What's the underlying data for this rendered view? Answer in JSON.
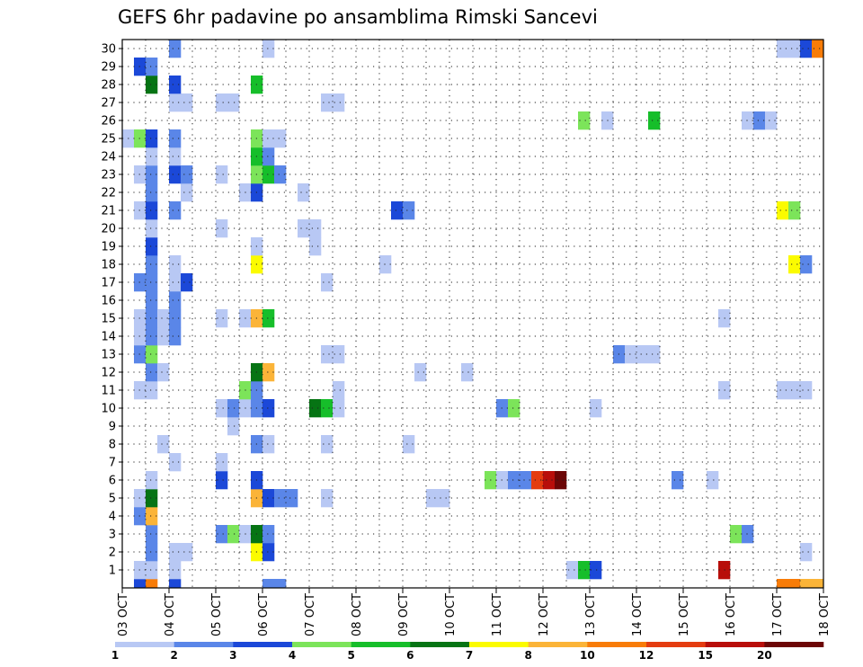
{
  "chart_data": {
    "type": "heatmap",
    "title": "GEFS 6hr padavine po ansamblima Rimski Sancevi",
    "xlabel": "",
    "ylabel": "",
    "x_tick_labels": [
      "03 OCT",
      "04 OCT",
      "05 OCT",
      "06 OCT",
      "07 OCT",
      "08 OCT",
      "09 OCT",
      "10 OCT",
      "11 OCT",
      "12 OCT",
      "13 OCT",
      "14 OCT",
      "15 OCT",
      "16 OCT",
      "17 OCT",
      "18 OCT"
    ],
    "x_range_steps": [
      0,
      60
    ],
    "y_range": [
      0,
      30
    ],
    "y_tick_labels": [
      "1",
      "2",
      "3",
      "4",
      "5",
      "6",
      "7",
      "8",
      "9",
      "10",
      "11",
      "12",
      "13",
      "14",
      "15",
      "16",
      "17",
      "18",
      "19",
      "20",
      "21",
      "22",
      "23",
      "24",
      "25",
      "26",
      "27",
      "28",
      "29",
      "30"
    ],
    "grid": true,
    "grid_style": "dotted",
    "colorbar": {
      "levels": [
        1,
        2,
        3,
        4,
        5,
        6,
        7,
        8,
        10,
        12,
        15,
        20
      ],
      "labels": [
        "1",
        "2",
        "3",
        "4",
        "5",
        "6",
        "7",
        "8",
        "10",
        "12",
        "15",
        "20"
      ],
      "colors": [
        "#b8c8f4",
        "#5a86e8",
        "#1b48d8",
        "#7ce45a",
        "#16be2a",
        "#067414",
        "#fbfb00",
        "#fbb438",
        "#f87c08",
        "#e43c10",
        "#b80e0a",
        "#6c0606"
      ]
    },
    "cells_note": "each cell = [member, start_step(6h), end_step, color_class]; class 1 = 1-2 mm ... class 12 = >=20 mm",
    "cells": [
      [
        0,
        1,
        2,
        3
      ],
      [
        0,
        2,
        3,
        9
      ],
      [
        0,
        4,
        5,
        3
      ],
      [
        0,
        12,
        14,
        2
      ],
      [
        0,
        56,
        58,
        9
      ],
      [
        0,
        58,
        60,
        8
      ],
      [
        1,
        1,
        3,
        1
      ],
      [
        1,
        4,
        5,
        1
      ],
      [
        1,
        38,
        39,
        1
      ],
      [
        1,
        39,
        40,
        5
      ],
      [
        1,
        40,
        41,
        3
      ],
      [
        1,
        51,
        52,
        11
      ],
      [
        2,
        2,
        3,
        2
      ],
      [
        2,
        4,
        6,
        1
      ],
      [
        2,
        11,
        12,
        7
      ],
      [
        2,
        12,
        13,
        3
      ],
      [
        2,
        58,
        59,
        1
      ],
      [
        3,
        2,
        3,
        2
      ],
      [
        3,
        8,
        9,
        2
      ],
      [
        3,
        9,
        10,
        4
      ],
      [
        3,
        10,
        11,
        1
      ],
      [
        3,
        11,
        12,
        6
      ],
      [
        3,
        12,
        13,
        2
      ],
      [
        3,
        52,
        53,
        4
      ],
      [
        3,
        53,
        54,
        2
      ],
      [
        4,
        1,
        2,
        2
      ],
      [
        4,
        2,
        3,
        8
      ],
      [
        5,
        1,
        2,
        1
      ],
      [
        5,
        2,
        3,
        6
      ],
      [
        5,
        11,
        12,
        8
      ],
      [
        5,
        12,
        13,
        3
      ],
      [
        5,
        13,
        15,
        2
      ],
      [
        5,
        17,
        18,
        1
      ],
      [
        5,
        26,
        28,
        1
      ],
      [
        6,
        2,
        3,
        1
      ],
      [
        6,
        8,
        9,
        3
      ],
      [
        6,
        11,
        12,
        3
      ],
      [
        6,
        31,
        32,
        4
      ],
      [
        6,
        32,
        33,
        1
      ],
      [
        6,
        33,
        35,
        2
      ],
      [
        6,
        35,
        36,
        10
      ],
      [
        6,
        36,
        37,
        11
      ],
      [
        6,
        37,
        38,
        12
      ],
      [
        6,
        47,
        48,
        2
      ],
      [
        6,
        50,
        51,
        1
      ],
      [
        7,
        4,
        5,
        1
      ],
      [
        7,
        8,
        9,
        1
      ],
      [
        8,
        3,
        4,
        1
      ],
      [
        8,
        11,
        12,
        2
      ],
      [
        8,
        12,
        13,
        1
      ],
      [
        8,
        17,
        18,
        1
      ],
      [
        8,
        24,
        25,
        1
      ],
      [
        9,
        9,
        10,
        1
      ],
      [
        10,
        8,
        9,
        1
      ],
      [
        10,
        9,
        10,
        2
      ],
      [
        10,
        10,
        11,
        1
      ],
      [
        10,
        11,
        12,
        2
      ],
      [
        10,
        12,
        13,
        3
      ],
      [
        10,
        16,
        17,
        6
      ],
      [
        10,
        17,
        18,
        5
      ],
      [
        10,
        18,
        19,
        1
      ],
      [
        10,
        32,
        33,
        2
      ],
      [
        10,
        33,
        34,
        4
      ],
      [
        10,
        40,
        41,
        1
      ],
      [
        11,
        1,
        3,
        1
      ],
      [
        11,
        10,
        11,
        4
      ],
      [
        11,
        11,
        12,
        2
      ],
      [
        11,
        18,
        19,
        1
      ],
      [
        11,
        51,
        52,
        1
      ],
      [
        11,
        56,
        59,
        1
      ],
      [
        12,
        2,
        3,
        2
      ],
      [
        12,
        3,
        4,
        1
      ],
      [
        12,
        11,
        12,
        6
      ],
      [
        12,
        12,
        13,
        8
      ],
      [
        12,
        25,
        26,
        1
      ],
      [
        12,
        29,
        30,
        1
      ],
      [
        13,
        1,
        2,
        2
      ],
      [
        13,
        2,
        3,
        4
      ],
      [
        13,
        17,
        19,
        1
      ],
      [
        13,
        42,
        43,
        2
      ],
      [
        13,
        43,
        46,
        1
      ],
      [
        14,
        1,
        2,
        1
      ],
      [
        14,
        2,
        3,
        2
      ],
      [
        14,
        3,
        4,
        1
      ],
      [
        14,
        4,
        5,
        2
      ],
      [
        15,
        1,
        2,
        1
      ],
      [
        15,
        2,
        3,
        2
      ],
      [
        15,
        3,
        4,
        1
      ],
      [
        15,
        4,
        5,
        2
      ],
      [
        15,
        8,
        9,
        1
      ],
      [
        15,
        10,
        11,
        1
      ],
      [
        15,
        11,
        12,
        8
      ],
      [
        15,
        12,
        13,
        5
      ],
      [
        15,
        51,
        52,
        1
      ],
      [
        16,
        2,
        3,
        2
      ],
      [
        16,
        4,
        5,
        2
      ],
      [
        17,
        1,
        3,
        2
      ],
      [
        17,
        4,
        5,
        1
      ],
      [
        17,
        5,
        6,
        3
      ],
      [
        17,
        17,
        18,
        1
      ],
      [
        18,
        2,
        3,
        2
      ],
      [
        18,
        4,
        5,
        1
      ],
      [
        18,
        11,
        12,
        7
      ],
      [
        18,
        22,
        23,
        1
      ],
      [
        18,
        57,
        58,
        7
      ],
      [
        18,
        58,
        59,
        2
      ],
      [
        19,
        2,
        3,
        3
      ],
      [
        19,
        11,
        12,
        1
      ],
      [
        19,
        16,
        17,
        1
      ],
      [
        20,
        2,
        3,
        1
      ],
      [
        20,
        8,
        9,
        1
      ],
      [
        20,
        15,
        17,
        1
      ],
      [
        21,
        1,
        2,
        1
      ],
      [
        21,
        2,
        3,
        3
      ],
      [
        21,
        4,
        5,
        2
      ],
      [
        21,
        23,
        24,
        3
      ],
      [
        21,
        24,
        25,
        2
      ],
      [
        21,
        56,
        57,
        7
      ],
      [
        21,
        57,
        58,
        4
      ],
      [
        22,
        2,
        3,
        2
      ],
      [
        22,
        5,
        6,
        1
      ],
      [
        22,
        10,
        11,
        1
      ],
      [
        22,
        11,
        12,
        3
      ],
      [
        22,
        15,
        16,
        1
      ],
      [
        23,
        1,
        2,
        1
      ],
      [
        23,
        2,
        3,
        2
      ],
      [
        23,
        4,
        5,
        3
      ],
      [
        23,
        5,
        6,
        2
      ],
      [
        23,
        8,
        9,
        1
      ],
      [
        23,
        11,
        12,
        4
      ],
      [
        23,
        12,
        13,
        5
      ],
      [
        23,
        13,
        14,
        2
      ],
      [
        24,
        2,
        3,
        1
      ],
      [
        24,
        4,
        5,
        1
      ],
      [
        24,
        11,
        12,
        5
      ],
      [
        24,
        12,
        13,
        2
      ],
      [
        25,
        0,
        1,
        1
      ],
      [
        25,
        1,
        2,
        4
      ],
      [
        25,
        2,
        3,
        3
      ],
      [
        25,
        4,
        5,
        2
      ],
      [
        25,
        11,
        12,
        4
      ],
      [
        25,
        12,
        14,
        1
      ],
      [
        26,
        39,
        40,
        4
      ],
      [
        26,
        41,
        42,
        1
      ],
      [
        26,
        45,
        46,
        5
      ],
      [
        26,
        53,
        54,
        1
      ],
      [
        26,
        54,
        55,
        2
      ],
      [
        26,
        55,
        56,
        1
      ],
      [
        27,
        4,
        6,
        1
      ],
      [
        27,
        8,
        10,
        1
      ],
      [
        27,
        17,
        19,
        1
      ],
      [
        28,
        2,
        3,
        6
      ],
      [
        28,
        4,
        5,
        3
      ],
      [
        28,
        11,
        12,
        5
      ],
      [
        29,
        1,
        2,
        3
      ],
      [
        29,
        2,
        3,
        2
      ],
      [
        30,
        4,
        5,
        2
      ],
      [
        30,
        12,
        13,
        1
      ],
      [
        30,
        56,
        58,
        1
      ],
      [
        30,
        58,
        59,
        3
      ],
      [
        30,
        59,
        60,
        9
      ]
    ]
  }
}
